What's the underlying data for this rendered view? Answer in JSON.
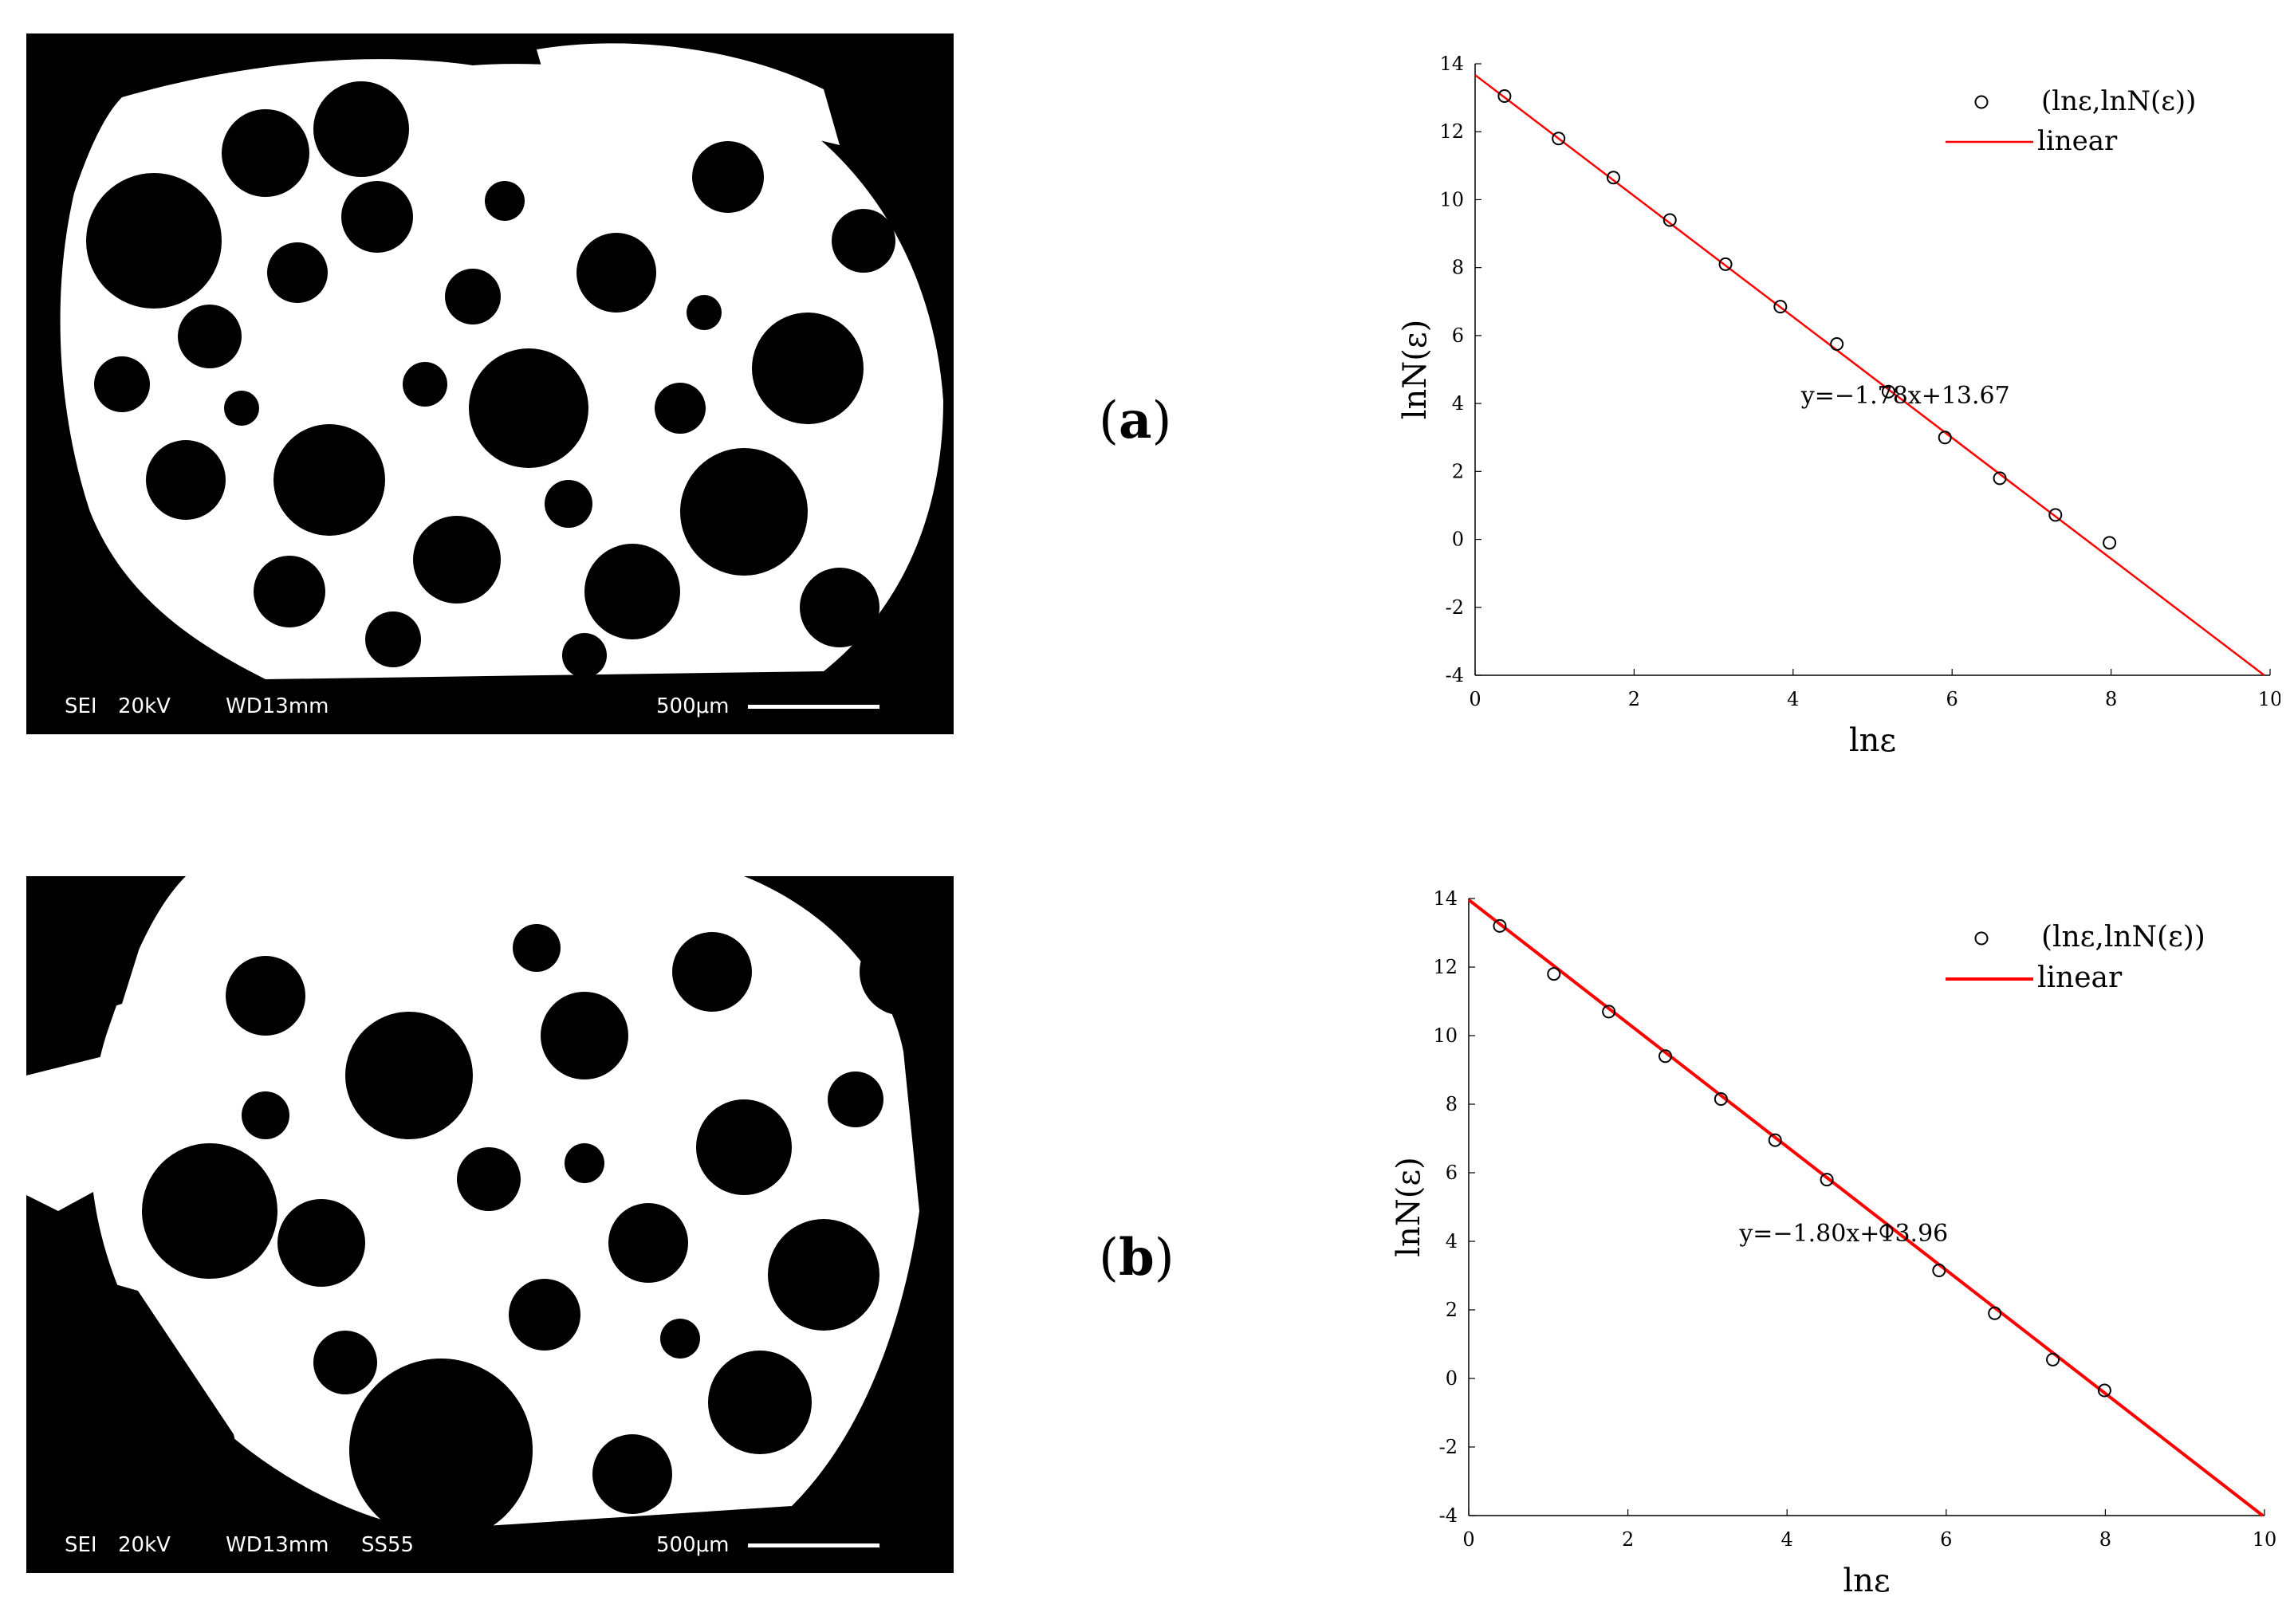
{
  "panels": [
    {
      "label_open": "(",
      "label_letter": "a",
      "label_close": ")",
      "sem_bar": {
        "detector": "SEI",
        "voltage": "20kV",
        "wd": "WD13mm",
        "scale": "500μm"
      },
      "equation": "y=−1.78x+13.67"
    },
    {
      "label_open": "(",
      "label_letter": "b",
      "label_close": ")",
      "sem_bar": {
        "detector": "SEI",
        "voltage": "20kV",
        "wd": "WD13mm",
        "scale": "500μm",
        "extra": "SS55"
      },
      "equation": "y=−1.80x+13.96"
    }
  ],
  "chart_data": [
    {
      "type": "scatter",
      "title": "",
      "xlabel": "lnε",
      "ylabel": "lnN(ε)",
      "xlim": [
        0,
        10
      ],
      "ylim": [
        -4,
        14
      ],
      "xticks": [
        0,
        2,
        4,
        6,
        8,
        10
      ],
      "yticks": [
        -4,
        -2,
        0,
        2,
        4,
        6,
        8,
        10,
        12,
        14
      ],
      "grid": false,
      "legend_position": "top-right",
      "series": [
        {
          "name": "(lnε,lnN(ε))",
          "kind": "scatter",
          "marker": "open-circle",
          "color": "#000000",
          "x": [
            0.37,
            1.05,
            1.74,
            2.45,
            3.15,
            3.84,
            4.55,
            5.2,
            5.91,
            6.6,
            7.3,
            7.98
          ],
          "y": [
            13.05,
            11.8,
            10.65,
            9.4,
            8.1,
            6.85,
            5.75,
            4.35,
            3.0,
            1.8,
            0.72,
            -0.1
          ]
        },
        {
          "name": "linear",
          "kind": "line",
          "color": "#ff0000",
          "slope": -1.78,
          "intercept": 13.67
        }
      ],
      "annotation": "y=−1.78x+13.67"
    },
    {
      "type": "scatter",
      "title": "",
      "xlabel": "lnε",
      "ylabel": "lnN(ε)",
      "xlim": [
        0,
        10
      ],
      "ylim": [
        -4,
        14
      ],
      "xticks": [
        0,
        2,
        4,
        6,
        8,
        10
      ],
      "yticks": [
        -4,
        -2,
        0,
        2,
        4,
        6,
        8,
        10,
        12,
        14
      ],
      "grid": false,
      "legend_position": "top-right",
      "series": [
        {
          "name": "(lnε,lnN(ε))",
          "kind": "scatter",
          "marker": "open-circle",
          "color": "#000000",
          "x": [
            0.39,
            1.07,
            1.76,
            2.47,
            3.17,
            3.85,
            4.5,
            5.25,
            5.91,
            6.61,
            7.34,
            7.99
          ],
          "y": [
            13.2,
            11.8,
            10.7,
            9.4,
            8.15,
            6.95,
            5.8,
            4.3,
            3.15,
            1.9,
            0.55,
            -0.35
          ]
        },
        {
          "name": "linear",
          "kind": "line",
          "color": "#ff0000",
          "slope": -1.8,
          "intercept": 13.96
        }
      ],
      "annotation": "y=−1.80x+13.96"
    }
  ]
}
